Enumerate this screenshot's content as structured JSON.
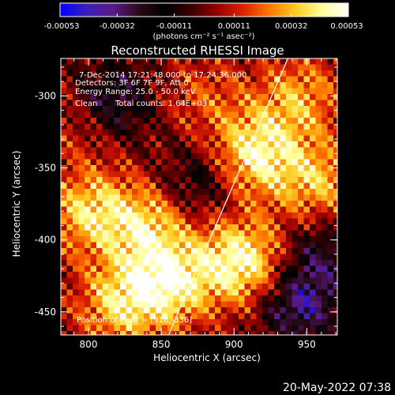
{
  "colorbar": {
    "tick_labels": [
      "-0.00053",
      "-0.00032",
      "-0.00011",
      "0.00011",
      "0.00032",
      "0.00053"
    ],
    "unit_label": "(photons cm⁻² s⁻¹ asec⁻²)",
    "colors": [
      "#0000ff",
      "#3a1fb8",
      "#5a1a8a",
      "#2a0a1a",
      "#000000",
      "#3a0000",
      "#990000",
      "#dd2200",
      "#ff7700",
      "#ffcc22",
      "#ffff99",
      "#ffffff"
    ]
  },
  "chart_data": {
    "type": "heatmap",
    "title": "Reconstructed RHESSI Image",
    "xlabel": "Heliocentric X (arcsec)",
    "ylabel": "Heliocentric Y (arcsec)",
    "xlim": [
      781,
      971
    ],
    "ylim": [
      -466,
      -274
    ],
    "x_ticks": [
      800,
      850,
      900,
      950
    ],
    "y_ticks": [
      -300,
      -350,
      -400,
      -450
    ],
    "colorbar_range": [
      -0.00053,
      0.00053
    ],
    "annotations": {
      "time": "7-Dec-2014 17:21:48.000 to 17:24:36.000",
      "detectors": "Detectors: 3F 6F 7F 9F, Att 0",
      "energy": "Energy Range: 25.0 - 50.0 keV",
      "method": "Clean",
      "counts": "Total counts: 1.64E+03",
      "peak": "Position of Peak = [918,-336]"
    },
    "peak_position": [
      918,
      -336
    ],
    "limb_line": [
      [
        855,
        -466
      ],
      [
        937,
        -274
      ]
    ],
    "hotspots": [
      {
        "x": 915,
        "y": -340,
        "w": 0.9
      },
      {
        "x": 905,
        "y": -415,
        "w": 1.0
      },
      {
        "x": 855,
        "y": -430,
        "w": 0.9
      },
      {
        "x": 820,
        "y": -445,
        "w": 0.7
      },
      {
        "x": 800,
        "y": -380,
        "w": 0.75
      },
      {
        "x": 840,
        "y": -390,
        "w": 0.7
      },
      {
        "x": 945,
        "y": -300,
        "w": 0.6
      },
      {
        "x": 958,
        "y": -360,
        "w": 0.65
      },
      {
        "x": 880,
        "y": -300,
        "w": 0.35
      },
      {
        "x": 800,
        "y": -315,
        "w": 0.4
      }
    ],
    "cold_regions": [
      {
        "x": 815,
        "y": -305,
        "w": 0.8
      },
      {
        "x": 945,
        "y": -445,
        "w": 0.8
      },
      {
        "x": 960,
        "y": -410,
        "w": 0.5
      },
      {
        "x": 875,
        "y": -360,
        "w": 0.45
      }
    ]
  },
  "footer": {
    "timestamp": "20-May-2022 07:38"
  }
}
